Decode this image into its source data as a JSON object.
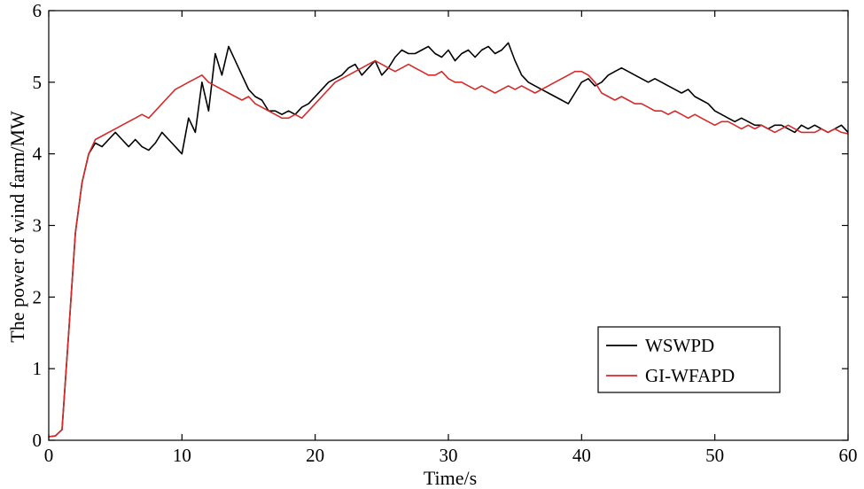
{
  "chart_data": {
    "type": "line",
    "title": "",
    "xlabel": "Time/s",
    "ylabel": "The power of wind farm/MW",
    "xlim": [
      0,
      60
    ],
    "ylim": [
      0,
      6
    ],
    "xticks": [
      "0",
      "10",
      "20",
      "30",
      "40",
      "50",
      "60"
    ],
    "yticks": [
      "0",
      "1",
      "2",
      "3",
      "4",
      "5",
      "6"
    ],
    "grid": false,
    "legend_position": "bottom-right",
    "series": [
      {
        "name": "WSWPD",
        "color": "#000000",
        "x": [
          0,
          0.5,
          1,
          1.5,
          2,
          2.5,
          3,
          3.5,
          4,
          4.5,
          5,
          5.5,
          6,
          6.5,
          7,
          7.5,
          8,
          8.5,
          9,
          9.5,
          10,
          10.5,
          11,
          11.5,
          12,
          12.5,
          13,
          13.5,
          14,
          14.5,
          15,
          15.5,
          16,
          16.5,
          17,
          17.5,
          18,
          18.5,
          19,
          19.5,
          20,
          20.5,
          21,
          21.5,
          22,
          22.5,
          23,
          23.5,
          24,
          24.5,
          25,
          25.5,
          26,
          26.5,
          27,
          27.5,
          28,
          28.5,
          29,
          29.5,
          30,
          30.5,
          31,
          31.5,
          32,
          32.5,
          33,
          33.5,
          34,
          34.5,
          35,
          35.5,
          36,
          36.5,
          37,
          37.5,
          38,
          38.5,
          39,
          39.5,
          40,
          40.5,
          41,
          41.5,
          42,
          42.5,
          43,
          43.5,
          44,
          44.5,
          45,
          45.5,
          46,
          46.5,
          47,
          47.5,
          48,
          48.5,
          49,
          49.5,
          50,
          50.5,
          51,
          51.5,
          52,
          52.5,
          53,
          53.5,
          54,
          54.5,
          55,
          55.5,
          56,
          56.5,
          57,
          57.5,
          58,
          58.5,
          59,
          59.5,
          60
        ],
        "values": [
          0.05,
          0.06,
          0.15,
          1.5,
          2.9,
          3.6,
          4.0,
          4.15,
          4.1,
          4.2,
          4.3,
          4.2,
          4.1,
          4.2,
          4.1,
          4.05,
          4.15,
          4.3,
          4.2,
          4.1,
          4.0,
          4.5,
          4.3,
          5.0,
          4.6,
          5.4,
          5.1,
          5.5,
          5.3,
          5.1,
          4.9,
          4.8,
          4.75,
          4.6,
          4.6,
          4.55,
          4.6,
          4.55,
          4.65,
          4.7,
          4.8,
          4.9,
          5.0,
          5.05,
          5.1,
          5.2,
          5.25,
          5.1,
          5.2,
          5.3,
          5.1,
          5.2,
          5.35,
          5.45,
          5.4,
          5.4,
          5.45,
          5.5,
          5.4,
          5.35,
          5.45,
          5.3,
          5.4,
          5.45,
          5.35,
          5.45,
          5.5,
          5.4,
          5.45,
          5.55,
          5.3,
          5.1,
          5.0,
          4.95,
          4.9,
          4.85,
          4.8,
          4.75,
          4.7,
          4.85,
          5.0,
          5.05,
          4.95,
          5.0,
          5.1,
          5.15,
          5.2,
          5.15,
          5.1,
          5.05,
          5.0,
          5.05,
          5.0,
          4.95,
          4.9,
          4.85,
          4.9,
          4.8,
          4.75,
          4.7,
          4.6,
          4.55,
          4.5,
          4.45,
          4.5,
          4.45,
          4.4,
          4.4,
          4.35,
          4.4,
          4.4,
          4.35,
          4.3,
          4.4,
          4.35,
          4.4,
          4.35,
          4.3,
          4.35,
          4.4,
          4.3
        ]
      },
      {
        "name": "GI-WFAPD",
        "color": "#d42a2a",
        "x": [
          0,
          0.5,
          1,
          1.5,
          2,
          2.5,
          3,
          3.5,
          4,
          4.5,
          5,
          5.5,
          6,
          6.5,
          7,
          7.5,
          8,
          8.5,
          9,
          9.5,
          10,
          10.5,
          11,
          11.5,
          12,
          12.5,
          13,
          13.5,
          14,
          14.5,
          15,
          15.5,
          16,
          16.5,
          17,
          17.5,
          18,
          18.5,
          19,
          19.5,
          20,
          20.5,
          21,
          21.5,
          22,
          22.5,
          23,
          23.5,
          24,
          24.5,
          25,
          25.5,
          26,
          26.5,
          27,
          27.5,
          28,
          28.5,
          29,
          29.5,
          30,
          30.5,
          31,
          31.5,
          32,
          32.5,
          33,
          33.5,
          34,
          34.5,
          35,
          35.5,
          36,
          36.5,
          37,
          37.5,
          38,
          38.5,
          39,
          39.5,
          40,
          40.5,
          41,
          41.5,
          42,
          42.5,
          43,
          43.5,
          44,
          44.5,
          45,
          45.5,
          46,
          46.5,
          47,
          47.5,
          48,
          48.5,
          49,
          49.5,
          50,
          50.5,
          51,
          51.5,
          52,
          52.5,
          53,
          53.5,
          54,
          54.5,
          55,
          55.5,
          56,
          56.5,
          57,
          57.5,
          58,
          58.5,
          59,
          59.5,
          60
        ],
        "values": [
          0.05,
          0.06,
          0.15,
          1.5,
          2.9,
          3.6,
          4.0,
          4.2,
          4.25,
          4.3,
          4.35,
          4.4,
          4.45,
          4.5,
          4.55,
          4.5,
          4.6,
          4.7,
          4.8,
          4.9,
          4.95,
          5.0,
          5.05,
          5.1,
          5.0,
          4.95,
          4.9,
          4.85,
          4.8,
          4.75,
          4.8,
          4.7,
          4.65,
          4.6,
          4.55,
          4.5,
          4.5,
          4.55,
          4.5,
          4.6,
          4.7,
          4.8,
          4.9,
          5.0,
          5.05,
          5.1,
          5.15,
          5.2,
          5.25,
          5.3,
          5.25,
          5.2,
          5.15,
          5.2,
          5.25,
          5.2,
          5.15,
          5.1,
          5.1,
          5.15,
          5.05,
          5.0,
          5.0,
          4.95,
          4.9,
          4.95,
          4.9,
          4.85,
          4.9,
          4.95,
          4.9,
          4.95,
          4.9,
          4.85,
          4.9,
          4.95,
          5.0,
          5.05,
          5.1,
          5.15,
          5.15,
          5.1,
          5.0,
          4.85,
          4.8,
          4.75,
          4.8,
          4.75,
          4.7,
          4.7,
          4.65,
          4.6,
          4.6,
          4.55,
          4.6,
          4.55,
          4.5,
          4.55,
          4.5,
          4.45,
          4.4,
          4.45,
          4.45,
          4.4,
          4.35,
          4.4,
          4.35,
          4.4,
          4.35,
          4.3,
          4.35,
          4.4,
          4.35,
          4.3,
          4.3,
          4.3,
          4.35,
          4.3,
          4.35,
          4.3,
          4.28
        ]
      }
    ]
  }
}
